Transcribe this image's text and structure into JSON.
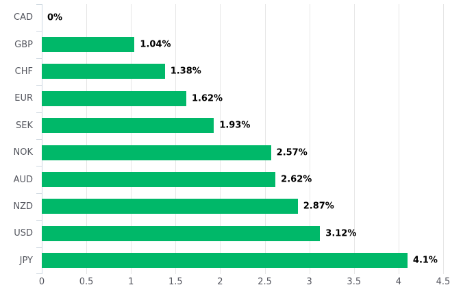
{
  "chart_data": {
    "type": "bar",
    "orientation": "horizontal",
    "title": "",
    "xlabel": "",
    "ylabel": "",
    "categories": [
      "CAD",
      "GBP",
      "CHF",
      "EUR",
      "SEK",
      "NOK",
      "AUD",
      "NZD",
      "USD",
      "JPY"
    ],
    "values": [
      0,
      1.04,
      1.38,
      1.62,
      1.93,
      2.57,
      2.62,
      2.87,
      3.12,
      4.1
    ],
    "value_labels": [
      "0%",
      "1.04%",
      "1.38%",
      "1.62%",
      "1.93%",
      "2.57%",
      "2.62%",
      "2.87%",
      "3.12%",
      "4.1%"
    ],
    "xlim": [
      0,
      4.5
    ],
    "x_ticks": [
      0,
      0.5,
      1,
      1.5,
      2,
      2.5,
      3,
      3.5,
      4,
      4.5
    ],
    "x_tick_labels": [
      "0",
      "0.5",
      "1",
      "1.5",
      "2",
      "2.5",
      "3",
      "3.5",
      "4",
      "4.5"
    ],
    "grid": true,
    "legend": false,
    "colors": {
      "bar": "#00b869",
      "gridline": "#e6e6e6",
      "axis_line": "#ccd6e2",
      "category_label": "#54565e",
      "tick_label": "#55565f",
      "value_label": "#000000"
    }
  }
}
